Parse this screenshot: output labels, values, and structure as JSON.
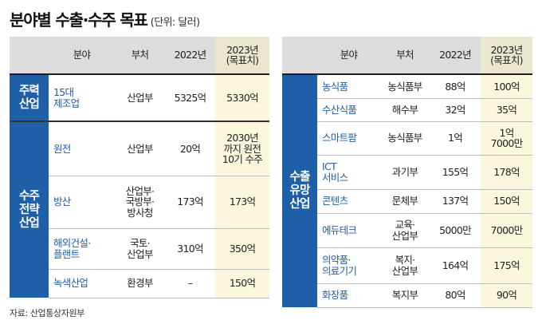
{
  "title": "분야별 수출·수주 목표",
  "unit": "(단위: 달러)",
  "source": "자료: 산업통상자원부",
  "headers": [
    "분야",
    "부처",
    "2022년",
    "2023년\n(목표치)"
  ],
  "left_table": {
    "sections": [
      {
        "label": "주력\n산업",
        "rows": [
          {
            "field": "15대\n제조업",
            "ministry": "산업부",
            "y2022": "5325억",
            "y2023": "5330억"
          }
        ]
      },
      {
        "label": "수주\n전략\n산업",
        "rows": [
          {
            "field": "원전",
            "ministry": "산업부",
            "y2022": "20억",
            "y2023": "2030년\n까지 원전\n10기 수주"
          },
          {
            "field": "방산",
            "ministry": "산업부·\n국방부·\n방사청",
            "y2022": "173억",
            "y2023": "173억"
          },
          {
            "field": "해외건설·\n플랜트",
            "ministry": "국토·\n산업부",
            "y2022": "310억",
            "y2023": "350억"
          },
          {
            "field": "녹색산업",
            "ministry": "환경부",
            "y2022": "–",
            "y2023": "150억"
          }
        ]
      }
    ]
  },
  "right_table": {
    "label": "수출\n유망\n산업",
    "rows": [
      {
        "field": "농식품",
        "ministry": "농식품부",
        "y2022": "88억",
        "y2023": "100억"
      },
      {
        "field": "수산식품",
        "ministry": "해수부",
        "y2022": "32억",
        "y2023": "35억"
      },
      {
        "field": "스마트팜",
        "ministry": "농식품부",
        "y2022": "1억",
        "y2023": "1억\n7000만"
      },
      {
        "field": "ICT\n서비스",
        "ministry": "과기부",
        "y2022": "155억",
        "y2023": "178억"
      },
      {
        "field": "콘텐츠",
        "ministry": "문체부",
        "y2022": "137억",
        "y2023": "150억"
      },
      {
        "field": "에듀테크",
        "ministry": "교육·\n산업부",
        "y2022": "5000만",
        "y2023": "7000만"
      },
      {
        "field": "의약품·\n의료기기",
        "ministry": "복지·\n산업부",
        "y2022": "164억",
        "y2023": "175억"
      },
      {
        "field": "화장품",
        "ministry": "복지부",
        "y2022": "80억",
        "y2023": "90억"
      }
    ]
  }
}
